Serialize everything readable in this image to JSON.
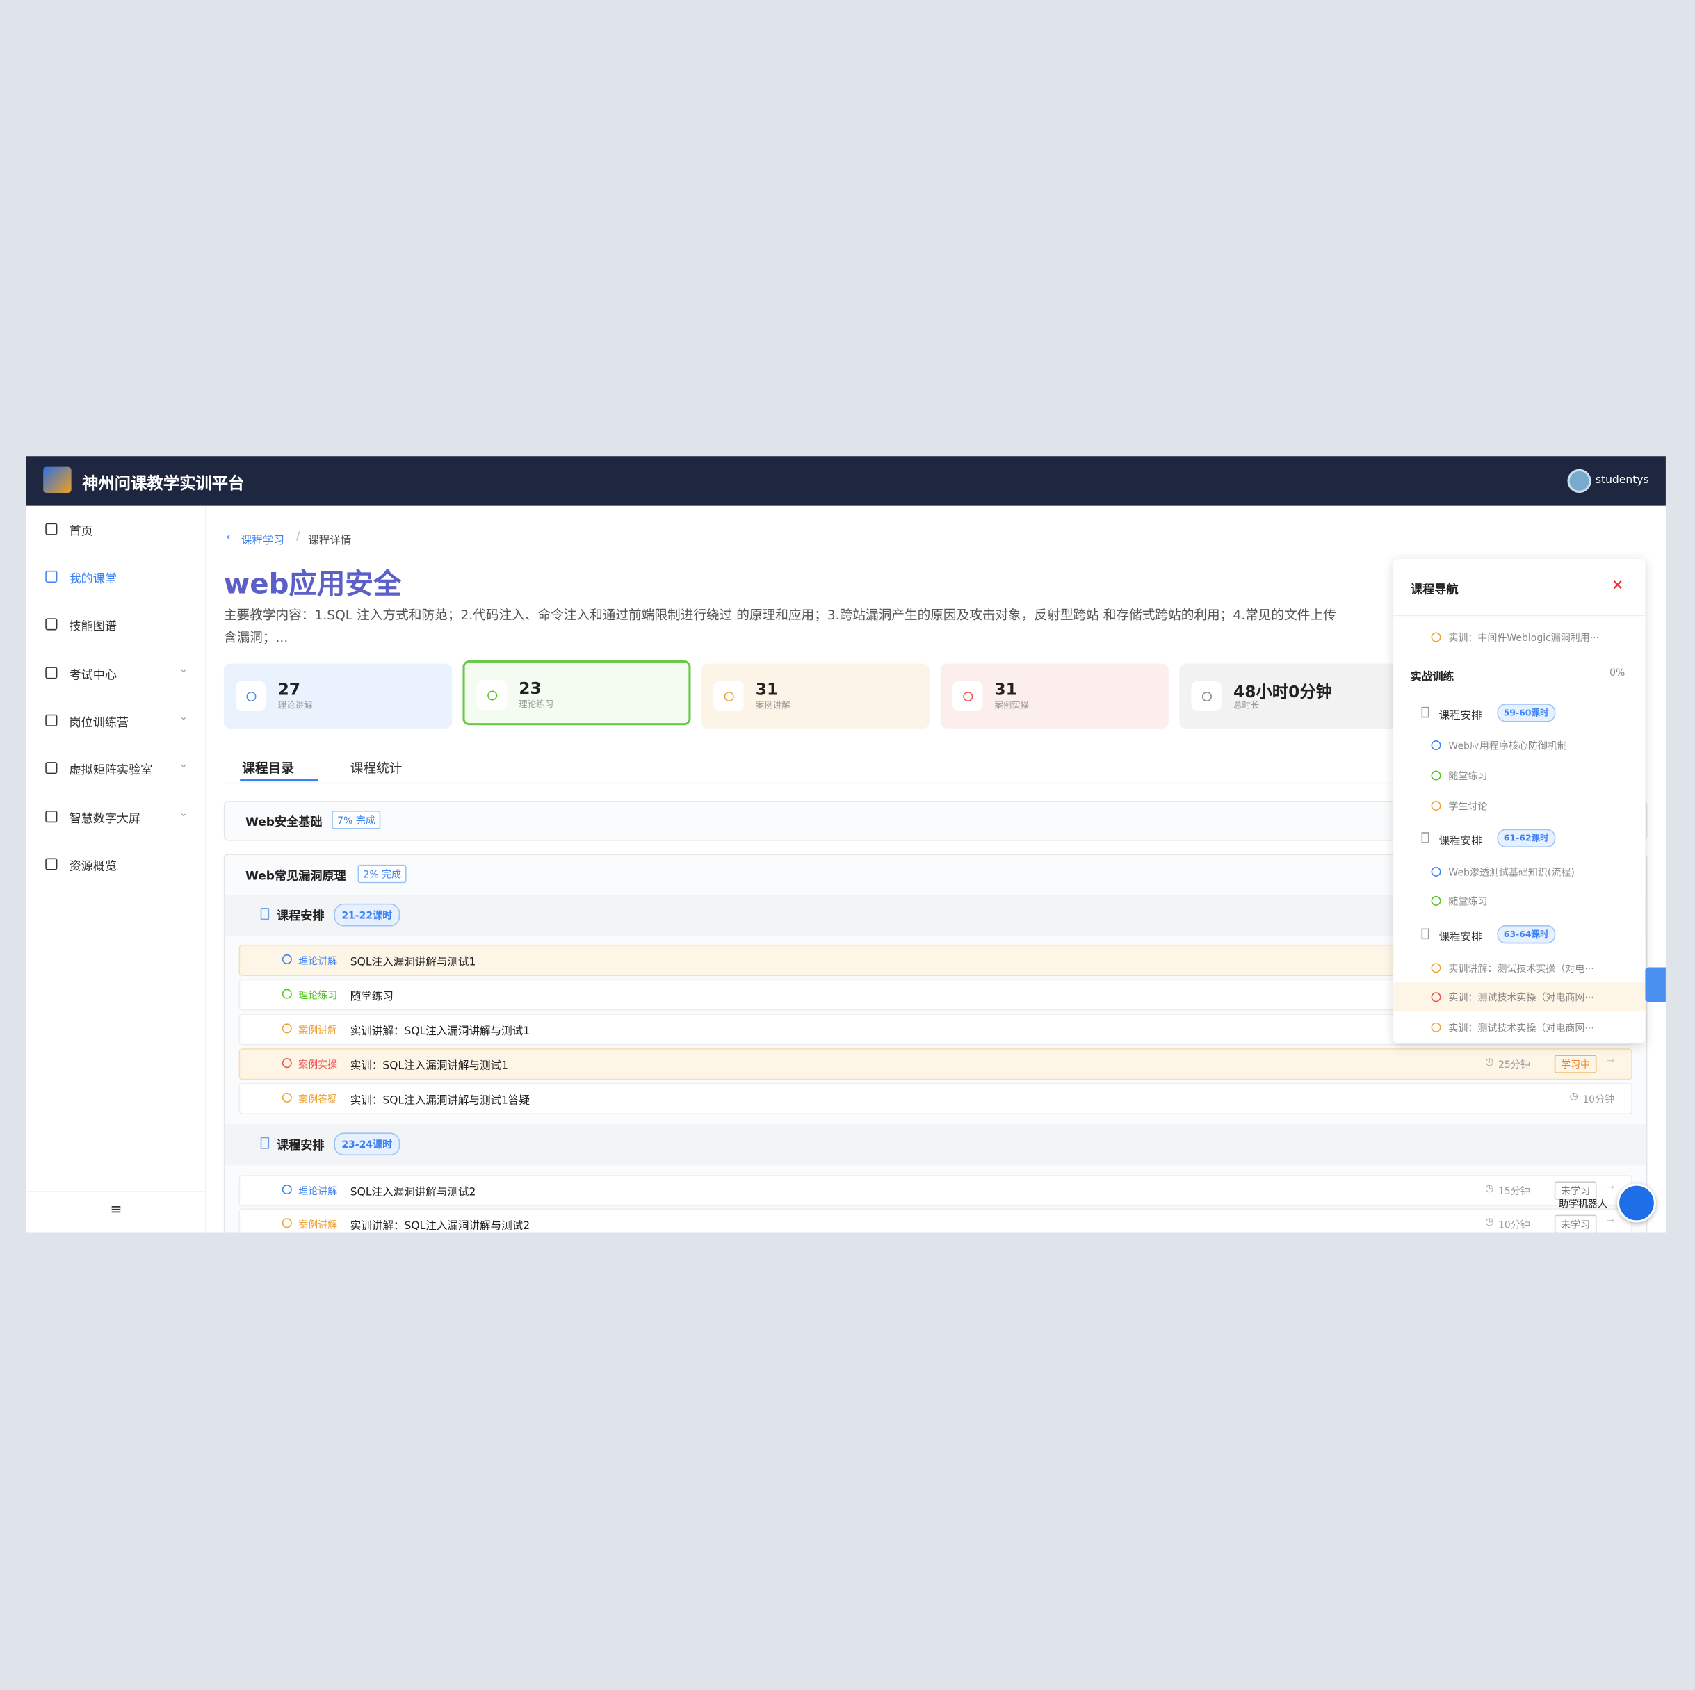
{
  "header": {
    "brand": "神州问课教学实训平台",
    "user": "studentys"
  },
  "sidebar": {
    "items": [
      {
        "label": "首页"
      },
      {
        "label": "我的课堂",
        "active": true
      },
      {
        "label": "技能图谱"
      },
      {
        "label": "考试中心",
        "expandable": true
      },
      {
        "label": "岗位训练营",
        "expandable": true
      },
      {
        "label": "虚拟矩阵实验室",
        "expandable": true
      },
      {
        "label": "智慧数字大屏",
        "expandable": true
      },
      {
        "label": "资源概览"
      }
    ]
  },
  "breadcrumb": [
    "课程学习",
    "课程详情"
  ],
  "course": {
    "title": "web应用安全",
    "description": [
      "主要教学内容：1.SQL 注入方式和防范；2.代码注入、命令注入和通过前端限制进行绕过 的原理和应用；3.跨站漏洞产生的原因及攻击对象，反射型跨站 和存储式跨站的利用；4.常见的文件上传",
      "含漏洞；..."
    ]
  },
  "stats": [
    {
      "value": 27,
      "label": "理论讲解",
      "color": "#4a8cf0",
      "background": "#eaf2fe"
    },
    {
      "value": 23,
      "label": "理论练习",
      "color": "#52c41a",
      "background": "#f4fbf0",
      "selected": true
    },
    {
      "value": 31,
      "label": "案例讲解",
      "color": "#f0a030",
      "background": "#fdf4e8"
    },
    {
      "value": 31,
      "label": "案例实操",
      "color": "#f05050",
      "background": "#fdeeee"
    },
    {
      "value": "48小时0分钟",
      "label": "总时长",
      "color": "#888888",
      "background": "#f2f2f2"
    }
  ],
  "tabs": [
    "课程目录",
    "课程统计"
  ],
  "chapters": [
    {
      "title": "Web安全基础",
      "progress": "7% 完成"
    },
    {
      "title": "Web常见漏洞原理",
      "progress": "2% 完成",
      "groups": [
        {
          "title": "课程安排",
          "badge": "21-22课时",
          "items": [
            {
              "type": "理论讲解",
              "color": "#3b82f6",
              "name": "SQL注入漏洞讲解与测试1",
              "highlight": true
            },
            {
              "type": "理论练习",
              "color": "#52c41a",
              "name": "随堂练习"
            },
            {
              "type": "案例讲解",
              "color": "#f0a030",
              "name": "实训讲解：SQL注入漏洞讲解与测试1"
            },
            {
              "type": "案例实操",
              "color": "#f05050",
              "name": "实训：SQL注入漏洞讲解与测试1",
              "duration": "25分钟",
              "status": "学习中",
              "highlight": true
            },
            {
              "type": "案例答疑",
              "color": "#f0a030",
              "name": "实训：SQL注入漏洞讲解与测试1答疑",
              "duration": "10分钟"
            }
          ]
        },
        {
          "title": "课程安排",
          "badge": "23-24课时",
          "items": [
            {
              "type": "理论讲解",
              "color": "#3b82f6",
              "name": "SQL注入漏洞讲解与测试2",
              "duration": "15分钟",
              "status": "未学习"
            },
            {
              "type": "案例讲解",
              "color": "#f0a030",
              "name": "实训讲解：SQL注入漏洞讲解与测试2",
              "duration": "10分钟",
              "status": "未学习"
            }
          ]
        }
      ]
    }
  ],
  "nav": {
    "title": "课程导航",
    "top_item": {
      "text": "实训：中间件Weblogic漏洞利用···",
      "color": "#f0a030"
    },
    "section": "实战训练",
    "section_progress": "0%",
    "groups": [
      {
        "title": "课程安排",
        "badge": "59-60课时",
        "items": [
          {
            "text": "Web应用程序核心防御机制",
            "color": "#3b82f6"
          },
          {
            "text": "随堂练习",
            "color": "#52c41a"
          },
          {
            "text": "学生讨论",
            "color": "#f0a030"
          }
        ]
      },
      {
        "title": "课程安排",
        "badge": "61-62课时",
        "items": [
          {
            "text": "Web渗透测试基础知识(流程)",
            "color": "#3b82f6"
          },
          {
            "text": "随堂练习",
            "color": "#52c41a"
          }
        ]
      },
      {
        "title": "课程安排",
        "badge": "63-64课时",
        "items": [
          {
            "text": "实训讲解：测试技术实操（对电···",
            "color": "#f0a030"
          },
          {
            "text": "实训：测试技术实操（对电商网···",
            "color": "#f05050",
            "highlight": true
          },
          {
            "text": "实训：测试技术实操（对电商网···",
            "color": "#f0a030"
          }
        ]
      }
    ]
  },
  "assistant": "助学机器人"
}
